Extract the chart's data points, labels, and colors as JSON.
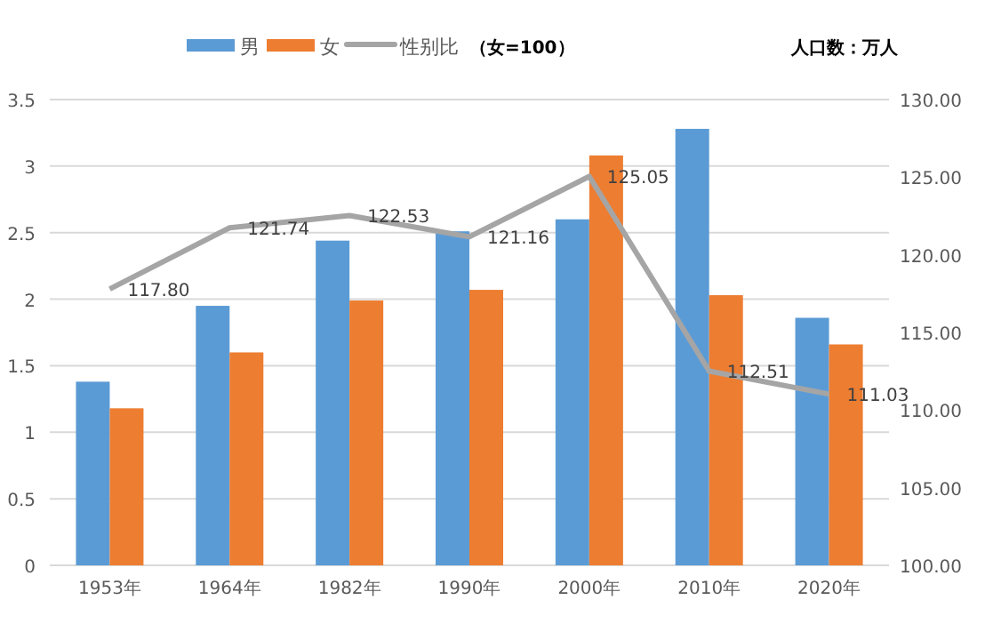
{
  "chart_data": {
    "type": "bar",
    "categories": [
      "1953年",
      "1964年",
      "1982年",
      "1990年",
      "2000年",
      "2010年",
      "2020年"
    ],
    "series": [
      {
        "name": "男",
        "color": "#5b9bd5",
        "values": [
          1.38,
          1.95,
          2.44,
          2.51,
          2.6,
          3.28,
          1.86
        ]
      },
      {
        "name": "女",
        "color": "#ed7d31",
        "values": [
          1.18,
          1.6,
          1.99,
          2.07,
          3.08,
          2.03,
          1.66
        ]
      },
      {
        "name": "性别比",
        "type": "line",
        "axis": "y2",
        "color": "#a5a5a5",
        "values": [
          117.8,
          121.74,
          122.53,
          121.16,
          125.05,
          112.51,
          111.03
        ],
        "value_labels": [
          "117.80",
          "121.74",
          "122.53",
          "121.16",
          "125.05",
          "112.51",
          "111.03"
        ]
      }
    ],
    "ylim": [
      0,
      3.5
    ],
    "yticks": [
      0,
      0.5,
      1,
      1.5,
      2,
      2.5,
      3,
      3.5
    ],
    "y2lim": [
      100,
      130
    ],
    "y2ticks": [
      {
        "value": 100,
        "label": "100.00"
      },
      {
        "value": 105,
        "label": "105.00"
      },
      {
        "value": 110,
        "label": "110.00"
      },
      {
        "value": 115,
        "label": "115.00"
      },
      {
        "value": 120,
        "label": "120.00"
      },
      {
        "value": 125,
        "label": "125.00"
      },
      {
        "value": 130,
        "label": "130.00"
      }
    ],
    "grid": "y",
    "legend": "top",
    "marker": "none",
    "annotations": [
      "（女=100）",
      "人口数：万人"
    ]
  }
}
